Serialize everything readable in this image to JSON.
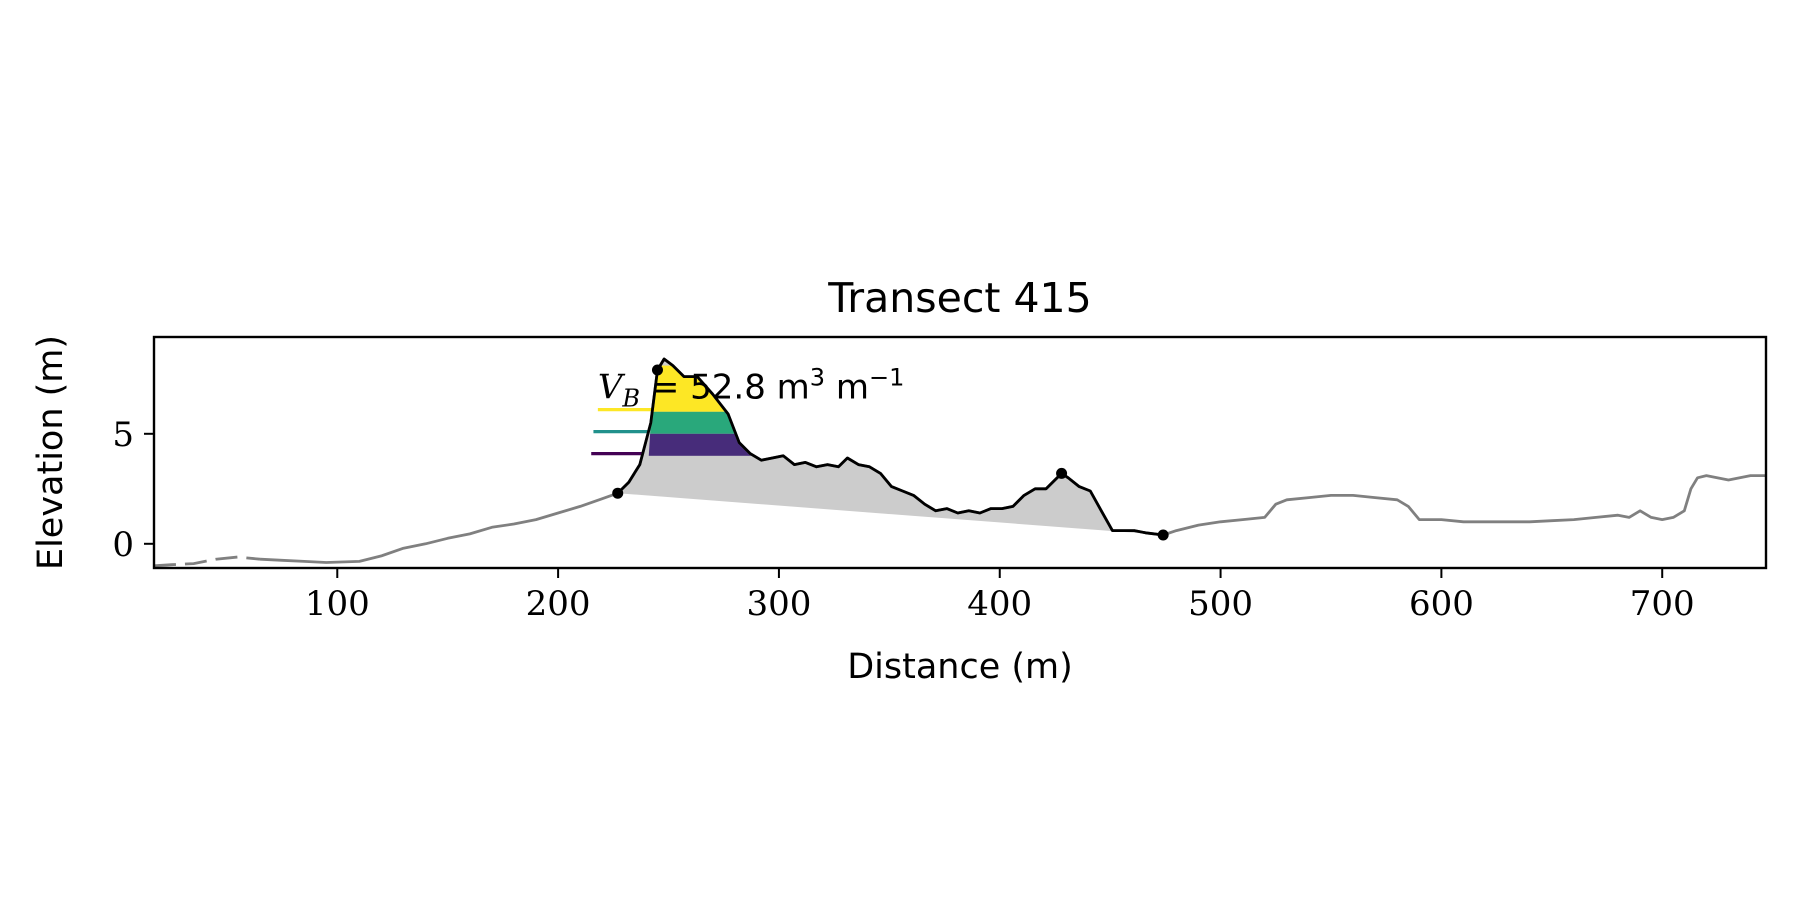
{
  "chart_data": {
    "type": "line",
    "title": "Transect 415",
    "xlabel": "Distance (m)",
    "ylabel": "Elevation (m)",
    "xlim": [
      17,
      747
    ],
    "ylim": [
      -1.1,
      9.4
    ],
    "xticks": [
      100,
      200,
      300,
      400,
      500,
      600,
      700
    ],
    "yticks": [
      0,
      5
    ],
    "xtick_labels": [
      "100",
      "200",
      "300",
      "400",
      "500",
      "600",
      "700"
    ],
    "ytick_labels": [
      "0",
      "5"
    ],
    "grid": false,
    "legend": "none",
    "annotation": {
      "prefix": "V",
      "subscript": "B",
      "text": " = 52.8 m",
      "unit_sup1": "3",
      "unit_mid": " m",
      "unit_sup2": "−1",
      "position": [
        218,
        6.6
      ]
    },
    "colors": {
      "profile": "#808080",
      "active_profile": "#000000",
      "fill": "#cccccc",
      "yellow": "#fde725",
      "teal": "#21918c",
      "green": "#29a87b",
      "purple": "#472c7a",
      "dark_purple": "#440154"
    },
    "profile_dashed_until": 65,
    "active_range": [
      227,
      474
    ],
    "markers": [
      {
        "x": 227,
        "y": 2.3
      },
      {
        "x": 245,
        "y": 7.9
      },
      {
        "x": 428,
        "y": 3.2
      },
      {
        "x": 474,
        "y": 0.4
      }
    ],
    "bands": [
      {
        "name": "yellow",
        "ymin": 6.0,
        "ymax": 8.1
      },
      {
        "name": "green",
        "ymin": 5.0,
        "ymax": 6.0
      },
      {
        "name": "purple",
        "ymin": 4.0,
        "ymax": 5.0
      }
    ],
    "levels": [
      {
        "color": "yellow",
        "y": 6.1,
        "x0": 218
      },
      {
        "color": "teal",
        "y": 5.1,
        "x0": 216
      },
      {
        "color": "dark_purple",
        "y": 4.1,
        "x0": 215
      }
    ],
    "profile": {
      "x": [
        17,
        25,
        35,
        45,
        55,
        65,
        75,
        85,
        95,
        110,
        120,
        130,
        140,
        150,
        160,
        170,
        180,
        190,
        200,
        210,
        220,
        227,
        232,
        237,
        242,
        245,
        248,
        252,
        257,
        263,
        270,
        277,
        282,
        287,
        292,
        297,
        302,
        307,
        312,
        317,
        322,
        327,
        331,
        336,
        341,
        346,
        351,
        356,
        361,
        366,
        371,
        376,
        381,
        386,
        391,
        396,
        401,
        406,
        411,
        416,
        421,
        426,
        428,
        431,
        436,
        441,
        446,
        451,
        456,
        461,
        466,
        474,
        480,
        490,
        500,
        510,
        520,
        525,
        530,
        540,
        550,
        560,
        570,
        580,
        585,
        590,
        600,
        610,
        620,
        630,
        640,
        650,
        660,
        670,
        680,
        685,
        690,
        695,
        700,
        705,
        710,
        713,
        716,
        720,
        730,
        740,
        747
      ],
      "y": [
        -1.0,
        -0.95,
        -0.9,
        -0.7,
        -0.6,
        -0.7,
        -0.75,
        -0.8,
        -0.85,
        -0.8,
        -0.55,
        -0.2,
        0.0,
        0.25,
        0.45,
        0.75,
        0.9,
        1.1,
        1.4,
        1.7,
        2.05,
        2.3,
        2.8,
        3.6,
        5.5,
        7.9,
        8.4,
        8.1,
        7.6,
        7.6,
        6.8,
        5.9,
        4.6,
        4.1,
        3.8,
        3.9,
        4.0,
        3.6,
        3.7,
        3.5,
        3.6,
        3.5,
        3.9,
        3.6,
        3.5,
        3.2,
        2.6,
        2.4,
        2.2,
        1.8,
        1.5,
        1.6,
        1.4,
        1.5,
        1.4,
        1.6,
        1.6,
        1.7,
        2.2,
        2.5,
        2.5,
        3.0,
        3.2,
        3.0,
        2.6,
        2.4,
        1.5,
        0.6,
        0.6,
        0.6,
        0.5,
        0.4,
        0.6,
        0.85,
        1.0,
        1.1,
        1.2,
        1.8,
        2.0,
        2.1,
        2.2,
        2.2,
        2.1,
        2.0,
        1.7,
        1.1,
        1.1,
        1.0,
        1.0,
        1.0,
        1.0,
        1.05,
        1.1,
        1.2,
        1.3,
        1.2,
        1.5,
        1.2,
        1.1,
        1.2,
        1.5,
        2.5,
        3.0,
        3.1,
        2.9,
        3.1,
        3.1
      ]
    }
  }
}
